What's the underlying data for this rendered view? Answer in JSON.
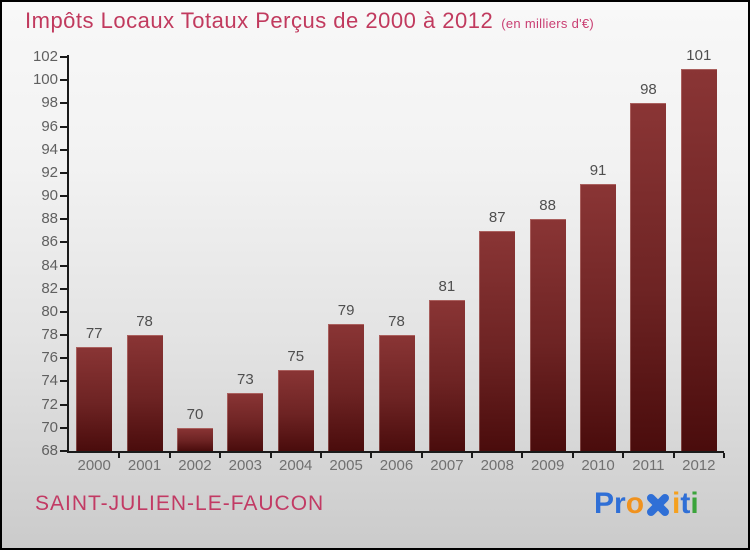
{
  "header": {
    "title": "Impôts Locaux Totaux Perçus de 2000 à 2012",
    "subtitle": "(en milliers d'€)",
    "title_color": "#c13a5e",
    "subtitle_color": "#c93e72"
  },
  "chart_data": {
    "type": "bar",
    "title": "Impôts Locaux Totaux Perçus de 2000 à 2012",
    "subtitle": "(en milliers d'€)",
    "categories": [
      "2000",
      "2001",
      "2002",
      "2003",
      "2004",
      "2005",
      "2006",
      "2007",
      "2008",
      "2009",
      "2010",
      "2011",
      "2012"
    ],
    "values": [
      77,
      78,
      70,
      73,
      75,
      79,
      78,
      81,
      87,
      88,
      91,
      98,
      101
    ],
    "xlabel": "",
    "ylabel": "",
    "ylim": [
      68,
      102
    ],
    "ytick_step": 2,
    "grid": false,
    "legend": null,
    "bar_color_top": "#8a3535",
    "bar_color_bottom": "#4a0c0c",
    "value_label_color": "#4f4f4f",
    "axis_color": "#1a1a1a",
    "ytick_label_color": "#606060",
    "xtick_label_color": "#707070"
  },
  "footer": {
    "place_name": "SAINT-JULIEN-LE-FAUCON",
    "place_color": "#c23a64",
    "logo_name": "Proxiti",
    "logo": {
      "letters": [
        {
          "ch": "P",
          "color": "#2f6fd6"
        },
        {
          "ch": "r",
          "color": "#2f6fd6"
        },
        {
          "ch": "o",
          "color": "#f0921e"
        },
        {
          "ch": "x-cross-icon",
          "color": "#2f6fd6",
          "icon": true
        },
        {
          "ch": "i",
          "color": "#f5a01e"
        },
        {
          "ch": "t",
          "color": "#2f6fd6"
        },
        {
          "ch": "i",
          "color": "#3ba43b"
        }
      ]
    }
  }
}
